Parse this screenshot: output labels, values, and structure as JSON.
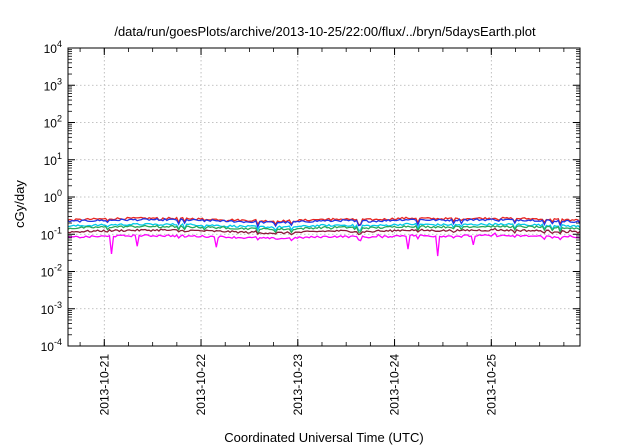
{
  "chart_data": {
    "type": "line",
    "title": "/data/run/goesPlots/archive/2013-10-25/22:00/flux/../bryn/5daysEarth.plot",
    "xlabel": "Coordinated Universal Time (UTC)",
    "ylabel": "cGy/day",
    "yscale": "log",
    "ylim": [
      0.0001,
      10000
    ],
    "yticks": [
      {
        "base": "10",
        "exp": "-4",
        "value": 0.0001
      },
      {
        "base": "10",
        "exp": "-3",
        "value": 0.001
      },
      {
        "base": "10",
        "exp": "-2",
        "value": 0.01
      },
      {
        "base": "10",
        "exp": "-1",
        "value": 0.1
      },
      {
        "base": "10",
        "exp": "0",
        "value": 1
      },
      {
        "base": "10",
        "exp": "1",
        "value": 10
      },
      {
        "base": "10",
        "exp": "2",
        "value": 100
      },
      {
        "base": "10",
        "exp": "3",
        "value": 1000
      },
      {
        "base": "10",
        "exp": "4",
        "value": 10000
      }
    ],
    "xlim": [
      "2013-10-20T15:00",
      "2013-10-25T22:00"
    ],
    "xticks": [
      "2013-10-21",
      "2013-10-22",
      "2013-10-23",
      "2013-10-24",
      "2013-10-25"
    ],
    "grid": true,
    "legend": "none",
    "series": [
      {
        "color": "#e8251f",
        "level": 0.24
      },
      {
        "color": "#2035e6",
        "level": 0.22
      },
      {
        "color": "#00c8e8",
        "level": 0.165
      },
      {
        "color": "#2aa85a",
        "level": 0.145
      },
      {
        "color": "#8b1a3a",
        "level": 0.115
      },
      {
        "color": "#ff00ff",
        "level": 0.082
      }
    ]
  }
}
